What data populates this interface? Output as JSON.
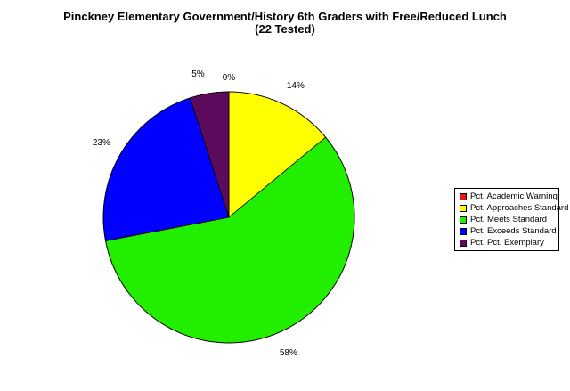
{
  "chart_data": {
    "type": "pie",
    "title": "Pinckney Elementary Government/History 6th Graders with Free/Reduced Lunch",
    "subtitle": "(22 Tested)",
    "legend_position": "right",
    "slices": [
      {
        "name": "Pct. Academic Warning",
        "value": 0,
        "label": "0%",
        "color": "#e8141c"
      },
      {
        "name": "Pct. Approaches Standard",
        "value": 14,
        "label": "14%",
        "color": "#ffff00"
      },
      {
        "name": "Pct. Meets Standard",
        "value": 58,
        "label": "58%",
        "color": "#22ee00"
      },
      {
        "name": "Pct. Exceeds Standard",
        "value": 23,
        "label": "23%",
        "color": "#0000ff"
      },
      {
        "name": "Pct. Pct. Exemplary",
        "value": 5,
        "label": "5%",
        "color": "#5c0a5c"
      }
    ]
  }
}
